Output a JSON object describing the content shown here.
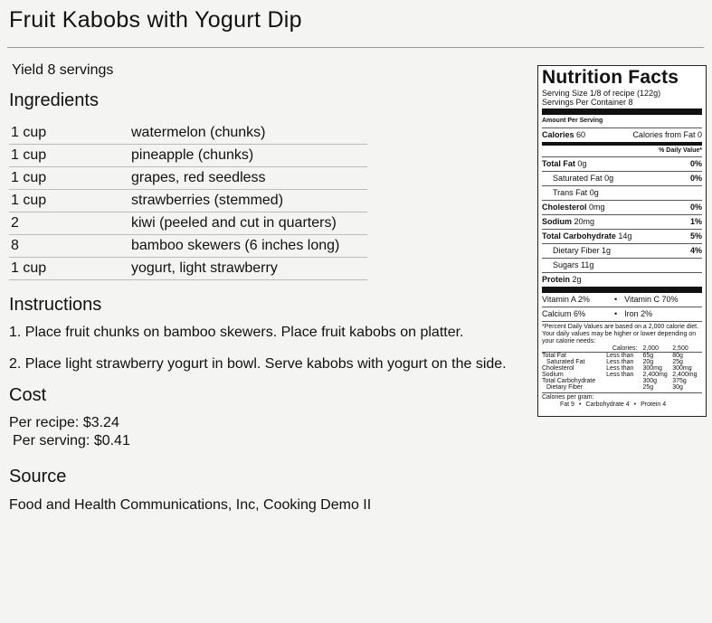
{
  "title": "Fruit Kabobs with Yogurt Dip",
  "yield": {
    "label": "Yield",
    "value": "8 servings"
  },
  "ingredients": {
    "heading": "Ingredients",
    "rows": [
      [
        "1 cup",
        "watermelon (chunks)"
      ],
      [
        "1 cup",
        "pineapple (chunks)"
      ],
      [
        "1 cup",
        "grapes, red seedless"
      ],
      [
        "1 cup",
        "strawberries (stemmed)"
      ],
      [
        "2",
        "kiwi (peeled and cut in quarters)"
      ],
      [
        "8",
        "bamboo skewers (6 inches long)"
      ],
      [
        "1 cup",
        "yogurt, light strawberry"
      ]
    ]
  },
  "instructions": {
    "heading": "Instructions",
    "steps": [
      "1. Place fruit chunks on bamboo skewers. Place fruit kabobs on platter.",
      "2. Place light strawberry yogurt in bowl. Serve kabobs with yogurt on the side."
    ]
  },
  "cost": {
    "heading": "Cost",
    "lines": [
      "Per recipe: $3.24",
      "Per serving: $0.41"
    ]
  },
  "source": {
    "heading": "Source",
    "text": "Food and Health Communications, Inc, Cooking Demo II"
  },
  "nutrition": {
    "title": "Nutrition Facts",
    "serving_size": "Serving Size 1/8 of recipe (122g)",
    "servings_per_container": "Servings Per Container 8",
    "amount_per_serving": "Amount Per Serving",
    "calories": {
      "label": "Calories",
      "value": "60"
    },
    "calories_from_fat": {
      "label": "Calories from Fat",
      "value": "0"
    },
    "daily_value_header": "% Daily Value*",
    "nutrients": [
      {
        "label": "Total Fat",
        "amount": "0g",
        "dv": "0%",
        "sub": [
          {
            "label": "Saturated Fat",
            "amount": "0g",
            "dv": "0%"
          },
          {
            "label": "Trans Fat",
            "amount": "0g"
          }
        ]
      },
      {
        "label": "Cholesterol",
        "amount": "0mg",
        "dv": "0%"
      },
      {
        "label": "Sodium",
        "amount": "20mg",
        "dv": "1%"
      },
      {
        "label": "Total Carbohydrate",
        "amount": "14g",
        "dv": "5%",
        "sub": [
          {
            "label": "Dietary Fiber",
            "amount": "1g",
            "dv": "4%"
          },
          {
            "label": "Sugars",
            "amount": "11g"
          }
        ]
      },
      {
        "label": "Protein",
        "amount": "2g"
      }
    ],
    "vitamins": [
      [
        "Vitamin A 2%",
        "Vitamin C 70%"
      ],
      [
        "Calcium 6%",
        "Iron 2%"
      ]
    ],
    "footnote": "*Percent Daily Values are based on a 2,000 calorie diet. Your daily values may be higher or lower depending on your calorie needs:",
    "dv_table": {
      "header": [
        "Calories:",
        "2,000",
        "2,500"
      ],
      "rows": [
        [
          "Total Fat",
          "Less than",
          "65g",
          "80g"
        ],
        [
          "Saturated Fat",
          "Less than",
          "20g",
          "25g"
        ],
        [
          "Cholesterol",
          "Less than",
          "300mg",
          "300mg"
        ],
        [
          "Sodium",
          "Less than",
          "2,400mg",
          "2,400mg"
        ],
        [
          "Total Carbohydrate",
          null,
          "300g",
          "375g"
        ],
        [
          "Dietary Fiber",
          null,
          "25g",
          "30g"
        ]
      ]
    },
    "calories_per_gram": {
      "label": "Calories per gram:",
      "items": [
        "Fat 9",
        "Carbohydrate 4",
        "Protein 4"
      ]
    }
  }
}
